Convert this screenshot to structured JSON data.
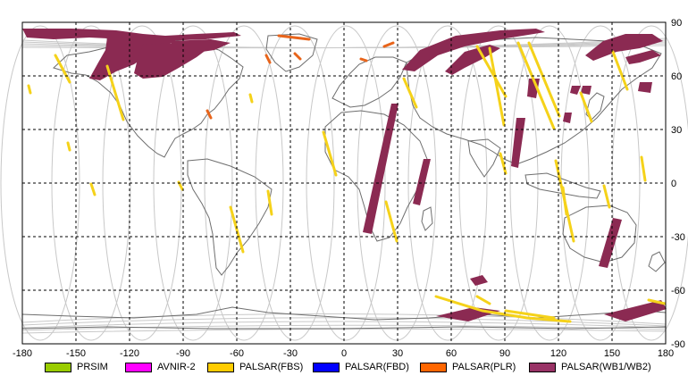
{
  "map": {
    "x_ticks": [
      "-180",
      "-150",
      "-120",
      "-90",
      "-60",
      "-30",
      "0",
      "30",
      "60",
      "90",
      "120",
      "150",
      "180"
    ],
    "y_ticks": [
      "90",
      "60",
      "30",
      "0",
      "-30",
      "-60",
      "-90"
    ],
    "colors": {
      "swath_purple": "#8b2a52",
      "swath_yellow": "#f5d21a",
      "swath_orange": "#e8641a",
      "orbit_grey": "#c8c8c8",
      "coast_grey": "#6e6e6e",
      "grid": "#000000"
    }
  },
  "legend": [
    {
      "label": "PRSIM",
      "color": "#99cc00"
    },
    {
      "label": "AVNIR-2",
      "color": "#ff00ff"
    },
    {
      "label": "PALSAR(FBS)",
      "color": "#ffcc00"
    },
    {
      "label": "PALSAR(FBD)",
      "color": "#0000ff"
    },
    {
      "label": "PALSAR(PLR)",
      "color": "#ff6600"
    },
    {
      "label": "PALSAR(WB1/WB2)",
      "color": "#993366"
    }
  ]
}
